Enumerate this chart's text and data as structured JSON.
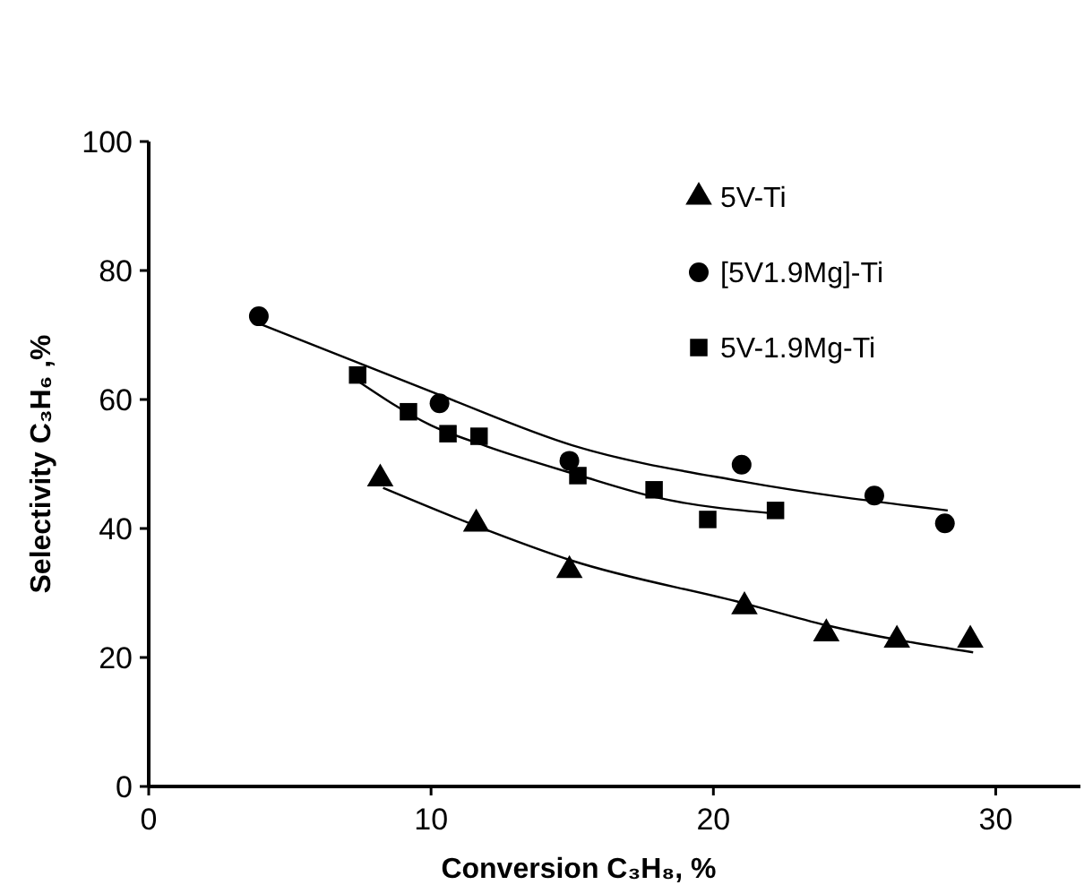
{
  "chart_data": {
    "type": "scatter",
    "xlabel": "Conversion C₃H₈, %",
    "ylabel": "Selectivity C₃H₆ ,%",
    "xlim": [
      0,
      33
    ],
    "ylim": [
      0,
      100
    ],
    "xticks": [
      0,
      10,
      20,
      30
    ],
    "yticks": [
      0,
      20,
      40,
      60,
      80,
      100
    ],
    "grid": false,
    "legend": "top right",
    "series": [
      {
        "name": "5V-Ti",
        "color": "#000000",
        "marker": "triangle",
        "x": [
          8.2,
          11.6,
          14.9,
          21.1,
          24.0,
          26.5,
          29.1
        ],
        "values": [
          47.7,
          40.7,
          33.5,
          27.9,
          23.7,
          22.7,
          22.7
        ]
      },
      {
        "name": "[5V1.9Mg]-Ti",
        "color": "#000000",
        "marker": "circle",
        "x": [
          3.9,
          10.3,
          14.9,
          21.0,
          25.7,
          28.2
        ],
        "values": [
          72.9,
          59.4,
          50.5,
          49.9,
          45.1,
          40.8
        ]
      },
      {
        "name": "5V-1.9Mg-Ti",
        "color": "#000000",
        "marker": "square",
        "x": [
          7.4,
          9.2,
          10.6,
          11.7,
          15.2,
          17.9,
          19.8,
          22.2
        ],
        "values": [
          63.8,
          58.1,
          54.7,
          54.3,
          48.2,
          46.0,
          41.4,
          42.8
        ]
      },
      {
        "type": "line",
        "color": "#000000",
        "marker": "none",
        "x": [
          8.3,
          11.6,
          15,
          21,
          24,
          29.2
        ],
        "values": [
          46.3,
          40.4,
          35,
          28.5,
          25,
          20.8
        ]
      },
      {
        "type": "line",
        "color": "#000000",
        "marker": "none",
        "x": [
          3.9,
          10.3,
          15,
          21,
          28.3
        ],
        "values": [
          71.8,
          60.7,
          52.9,
          47.3,
          42.8
        ]
      },
      {
        "type": "line",
        "color": "#000000",
        "marker": "none",
        "x": [
          7.4,
          10,
          12,
          15.2,
          18,
          22.2
        ],
        "values": [
          62.9,
          56,
          52.7,
          48.3,
          44.8,
          42.3
        ]
      }
    ]
  }
}
